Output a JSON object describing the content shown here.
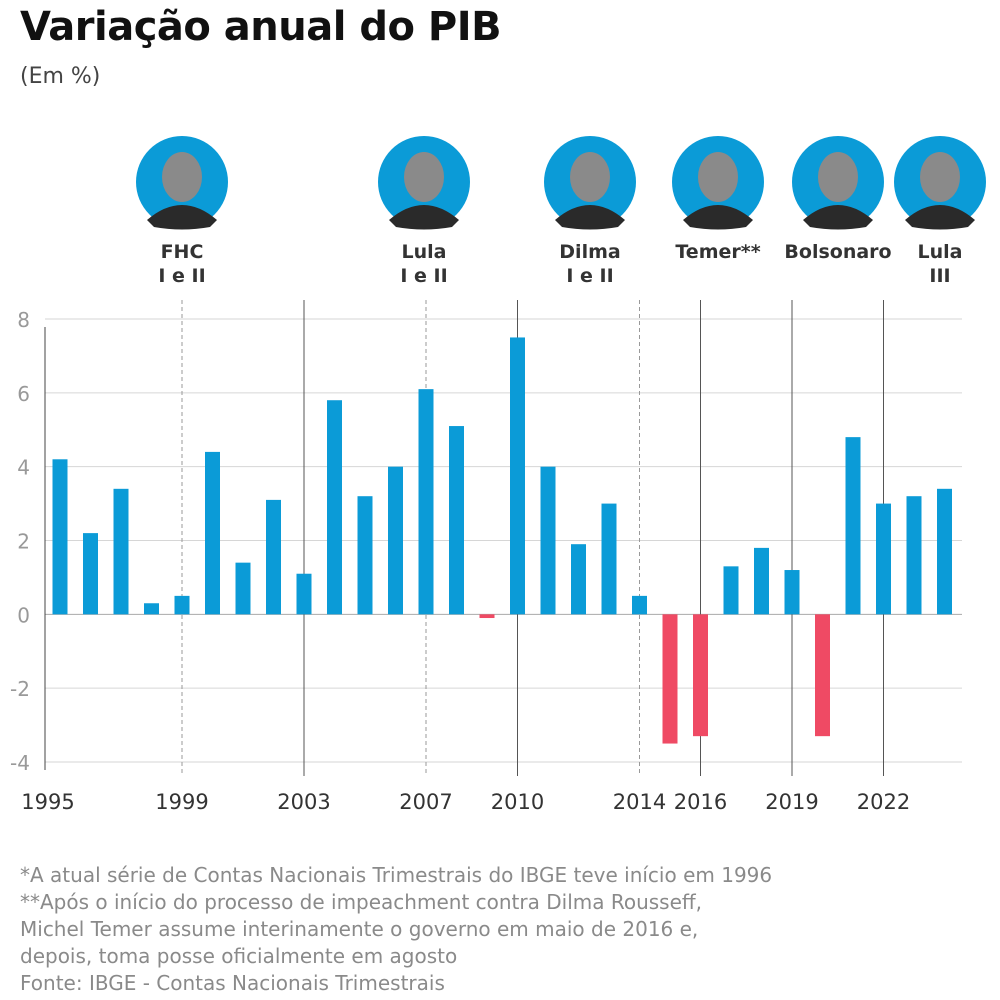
{
  "title": "Variação anual do PIB",
  "subtitle": "(Em %)",
  "chart_data": {
    "type": "bar",
    "x": [
      1995,
      1996,
      1997,
      1998,
      1999,
      2000,
      2001,
      2002,
      2003,
      2004,
      2005,
      2006,
      2007,
      2008,
      2009,
      2010,
      2011,
      2012,
      2013,
      2014,
      2015,
      2016,
      2017,
      2018,
      2019,
      2020,
      2021,
      2022,
      2023,
      2024
    ],
    "values": [
      4.2,
      2.2,
      3.4,
      0.3,
      0.5,
      4.4,
      1.4,
      3.1,
      1.1,
      5.8,
      3.2,
      4.0,
      6.1,
      5.1,
      -0.1,
      7.5,
      4.0,
      1.9,
      3.0,
      0.5,
      -3.5,
      -3.3,
      1.3,
      1.8,
      1.2,
      -3.3,
      4.8,
      3.0,
      3.2,
      3.4
    ],
    "ylim": [
      -4,
      8
    ],
    "yticks": [
      "-4",
      "-2",
      "0",
      "2",
      "4",
      "6",
      "8"
    ],
    "xticks": [
      "1995",
      "1999",
      "2003",
      "2007",
      "2010",
      "2014",
      "2016",
      "2019",
      "2022"
    ],
    "grid": true,
    "colors": {
      "positive": "#0b9bd7",
      "negative": "#ef4a64"
    },
    "presidents": [
      {
        "name": "FHC",
        "term": "I e II",
        "start": 1995
      },
      {
        "name": "Lula",
        "term": "I e II",
        "start": 2003
      },
      {
        "name": "Dilma",
        "term": "I e II",
        "start": 2011
      },
      {
        "name": "Temer**",
        "term": "",
        "start": 2016
      },
      {
        "name": "Bolsonaro",
        "term": "",
        "start": 2019
      },
      {
        "name": "Lula",
        "term": "III",
        "start": 2023
      }
    ],
    "dividers": [
      {
        "year": 1999,
        "style": "dashed"
      },
      {
        "year": 2003,
        "style": "solid"
      },
      {
        "year": 2007,
        "style": "dashed"
      },
      {
        "year": 2010,
        "style": "solid"
      },
      {
        "year": 2014,
        "style": "dashed"
      },
      {
        "year": 2016,
        "style": "solid"
      },
      {
        "year": 2019,
        "style": "solid"
      },
      {
        "year": 2022,
        "style": "solid"
      }
    ]
  },
  "footnotes": [
    "*A atual série de Contas Nacionais Trimestrais do IBGE teve início em 1996",
    "**Após o início do processo de impeachment contra Dilma Rousseff,",
    "Michel Temer assume interinamente o governo em maio de 2016 e,",
    "depois, toma posse oficialmente em agosto",
    "Fonte: IBGE - Contas Nacionais Trimestrais"
  ]
}
